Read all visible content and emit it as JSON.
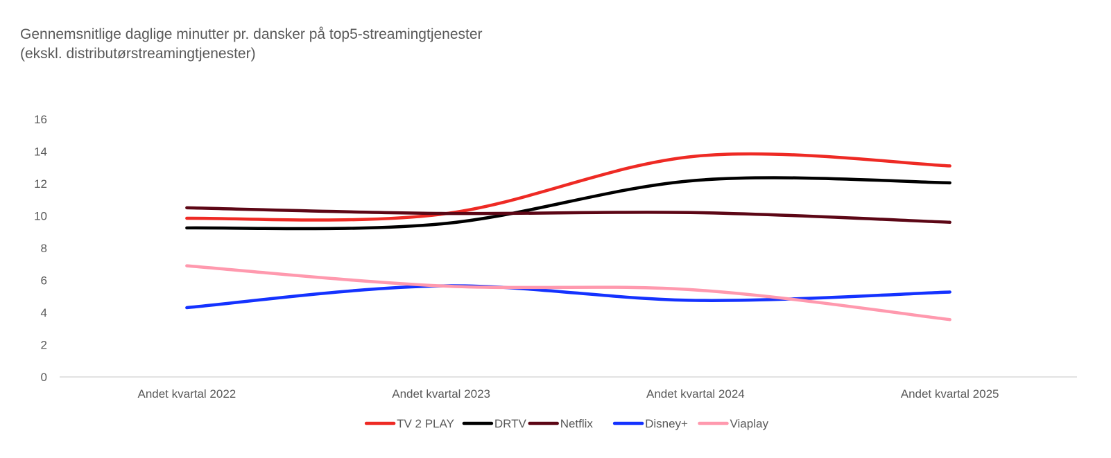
{
  "chart_data": {
    "type": "line",
    "title": "Gennemsnitlige daglige minutter pr. dansker på top5-streamingtjenester",
    "subtitle": "(ekskl. distributørstreamingtjenester)",
    "xlabel": "",
    "ylabel": "",
    "categories": [
      "Andet kvartal 2022",
      "Andet kvartal 2023",
      "Andet kvartal 2024",
      "Andet kvartal 2025"
    ],
    "ylim": [
      0,
      16
    ],
    "yticks": [
      "0",
      "2",
      "4",
      "6",
      "8",
      "10",
      "12",
      "14",
      "16"
    ],
    "grid": false,
    "smooth": true,
    "legend": "bottom",
    "series": [
      {
        "name": "TV 2 PLAY",
        "color": "#EE2A24",
        "values": [
          9.85,
          10.1,
          13.7,
          13.1
        ]
      },
      {
        "name": "DRTV",
        "color": "#000000",
        "values": [
          9.25,
          9.5,
          12.2,
          12.05
        ]
      },
      {
        "name": "Netflix",
        "color": "#5C0615",
        "values": [
          10.5,
          10.15,
          10.2,
          9.6
        ]
      },
      {
        "name": "Disney+",
        "color": "#1432FF",
        "values": [
          4.3,
          5.65,
          4.75,
          5.27
        ]
      },
      {
        "name": "Viaplay",
        "color": "#FF99AE",
        "values": [
          6.9,
          5.65,
          5.4,
          3.56
        ]
      }
    ]
  }
}
